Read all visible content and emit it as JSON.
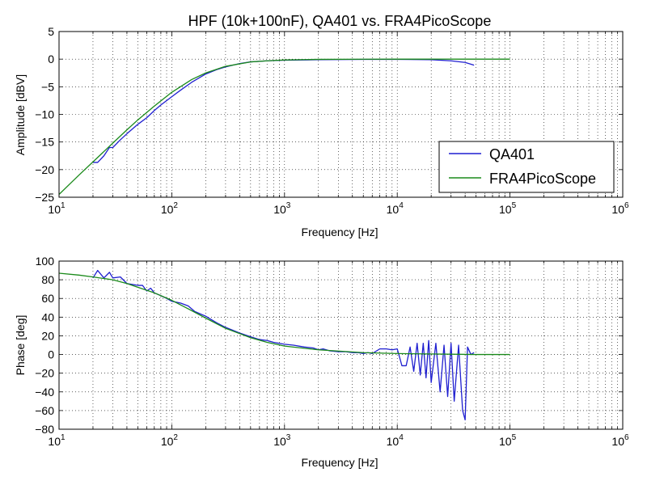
{
  "chart_data": [
    {
      "type": "line",
      "title": "HPF (10k+100nF), QA401 vs. FRA4PicoScope",
      "xlabel": "Frequency [Hz]",
      "ylabel": "Amplitude [dBV]",
      "xscale": "log",
      "xlim": [
        10,
        1000000
      ],
      "ylim": [
        -25,
        5
      ],
      "x_ticks": [
        {
          "base": "10",
          "exp": "1"
        },
        {
          "base": "10",
          "exp": "2"
        },
        {
          "base": "10",
          "exp": "3"
        },
        {
          "base": "10",
          "exp": "4"
        },
        {
          "base": "10",
          "exp": "5"
        },
        {
          "base": "10",
          "exp": "6"
        }
      ],
      "y_ticks": [
        "5",
        "0",
        "−5",
        "−10",
        "−15",
        "−20",
        "−25"
      ],
      "grid": true,
      "legend_position": "lower-right",
      "series": [
        {
          "name": "QA401",
          "color": "#1f1fd0",
          "x": [
            20,
            22,
            25,
            28,
            30,
            35,
            40,
            50,
            60,
            70,
            80,
            100,
            120,
            150,
            200,
            250,
            300,
            400,
            500,
            700,
            1000,
            2000,
            5000,
            10000,
            20000,
            30000,
            40000,
            48000
          ],
          "y": [
            -18.7,
            -18.7,
            -17.5,
            -16.0,
            -16.0,
            -14.6,
            -13.5,
            -11.8,
            -10.6,
            -9.3,
            -8.3,
            -6.8,
            -5.6,
            -4.2,
            -2.7,
            -1.9,
            -1.4,
            -0.8,
            -0.5,
            -0.3,
            -0.2,
            -0.1,
            -0.05,
            -0.05,
            -0.1,
            -0.3,
            -0.6,
            -1.1
          ]
        },
        {
          "name": "FRA4PicoScope",
          "color": "#1a8a1a",
          "x": [
            10,
            15,
            20,
            30,
            40,
            50,
            70,
            100,
            150,
            200,
            300,
            500,
            700,
            1000,
            2000,
            5000,
            10000,
            50000,
            100000
          ],
          "y": [
            -24.5,
            -21.0,
            -18.6,
            -15.2,
            -12.8,
            -11.0,
            -8.5,
            -6.0,
            -3.7,
            -2.5,
            -1.3,
            -0.5,
            -0.3,
            -0.15,
            -0.04,
            -0.01,
            0,
            0,
            0
          ]
        }
      ]
    },
    {
      "type": "line",
      "title": "",
      "xlabel": "Frequency [Hz]",
      "ylabel": "Phase [deg]",
      "xscale": "log",
      "xlim": [
        10,
        1000000
      ],
      "ylim": [
        -80,
        100
      ],
      "x_ticks": [
        {
          "base": "10",
          "exp": "1"
        },
        {
          "base": "10",
          "exp": "2"
        },
        {
          "base": "10",
          "exp": "3"
        },
        {
          "base": "10",
          "exp": "4"
        },
        {
          "base": "10",
          "exp": "5"
        },
        {
          "base": "10",
          "exp": "6"
        }
      ],
      "y_ticks": [
        "100",
        "80",
        "60",
        "40",
        "20",
        "0",
        "−20",
        "−40",
        "−60",
        "−80"
      ],
      "grid": true,
      "series": [
        {
          "name": "QA401",
          "color": "#1f1fd0",
          "x": [
            20,
            22,
            25,
            28,
            30,
            35,
            40,
            50,
            55,
            60,
            65,
            70,
            80,
            90,
            100,
            120,
            140,
            160,
            200,
            250,
            300,
            400,
            500,
            600,
            700,
            800,
            1000,
            1200,
            1500,
            1800,
            2000,
            2200,
            2500,
            3000,
            3500,
            4000,
            4500,
            5000,
            5500,
            6000,
            7000,
            8000,
            9000,
            10000,
            11000,
            12000,
            13000,
            14000,
            15000,
            16000,
            17000,
            18000,
            19000,
            20000,
            22000,
            24000,
            26000,
            28000,
            30000,
            32000,
            35000,
            38000,
            40000,
            42000,
            45000,
            48000
          ],
          "y": [
            82,
            90,
            82,
            88,
            82,
            83,
            76,
            74,
            74,
            68,
            71,
            66,
            63,
            60,
            57,
            55,
            52,
            46,
            41,
            34,
            29,
            23,
            19,
            16,
            15,
            13,
            11,
            10,
            8,
            7,
            5,
            6,
            4,
            3,
            3,
            2,
            2,
            1,
            2,
            1,
            6,
            6,
            5,
            6,
            -12,
            -12,
            8,
            -18,
            12,
            -22,
            12,
            -25,
            15,
            -30,
            12,
            -40,
            10,
            -45,
            12,
            -50,
            10,
            -60,
            -70,
            8,
            0,
            2
          ]
        },
        {
          "name": "FRA4PicoScope",
          "color": "#1a8a1a",
          "x": [
            10,
            15,
            20,
            30,
            40,
            50,
            70,
            100,
            150,
            200,
            300,
            500,
            700,
            1000,
            2000,
            5000,
            10000,
            50000,
            100000
          ],
          "y": [
            87,
            85,
            83,
            80,
            76,
            72,
            66,
            58,
            47,
            39,
            28,
            18,
            13,
            9,
            5,
            2,
            1,
            0,
            0
          ]
        }
      ]
    }
  ]
}
